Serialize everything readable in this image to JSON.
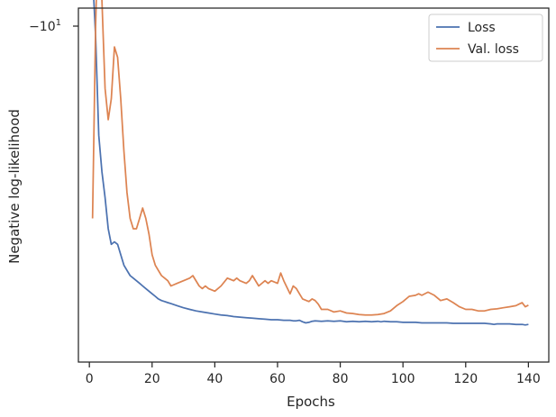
{
  "chart_data": {
    "type": "line",
    "xlabel": "Epochs",
    "ylabel": "Negative log-likelihood",
    "xlim": [
      -3.5,
      146.5
    ],
    "xticks": [
      0,
      20,
      40,
      60,
      80,
      100,
      120,
      140
    ],
    "y_top_tick_label": "−10",
    "y_top_tick_exponent": "1",
    "y_scale": "symlog (negated)",
    "grid": false,
    "legend_position": "top-right",
    "colors": {
      "Loss": "#4c72b0",
      "Val. loss": "#dd8452"
    },
    "series": [
      {
        "name": "Loss",
        "x": [
          1,
          2,
          3,
          4,
          5,
          6,
          7,
          8,
          9,
          10,
          11,
          12,
          13,
          14,
          15,
          16,
          17,
          18,
          19,
          20,
          21,
          22,
          23,
          24,
          25,
          26,
          28,
          30,
          32,
          34,
          36,
          38,
          40,
          42,
          44,
          46,
          48,
          50,
          52,
          54,
          56,
          58,
          60,
          62,
          64,
          65,
          66,
          67,
          68,
          69,
          70,
          71,
          72,
          74,
          76,
          78,
          80,
          82,
          84,
          86,
          88,
          90,
          92,
          93,
          94,
          96,
          98,
          100,
          102,
          104,
          106,
          108,
          110,
          112,
          114,
          116,
          118,
          120,
          122,
          124,
          126,
          128,
          129,
          130,
          132,
          134,
          136,
          138,
          139,
          140
        ],
        "y": [
          -11.0,
          -9.8,
          -7.9,
          -7.2,
          -6.7,
          -6.1,
          -5.8,
          -5.85,
          -5.8,
          -5.6,
          -5.4,
          -5.3,
          -5.2,
          -5.15,
          -5.1,
          -5.05,
          -5.0,
          -4.95,
          -4.9,
          -4.85,
          -4.8,
          -4.75,
          -4.72,
          -4.7,
          -4.68,
          -4.66,
          -4.62,
          -4.58,
          -4.55,
          -4.52,
          -4.5,
          -4.48,
          -4.46,
          -4.44,
          -4.43,
          -4.41,
          -4.4,
          -4.39,
          -4.38,
          -4.37,
          -4.36,
          -4.35,
          -4.35,
          -4.34,
          -4.34,
          -4.33,
          -4.33,
          -4.34,
          -4.31,
          -4.29,
          -4.3,
          -4.32,
          -4.33,
          -4.32,
          -4.33,
          -4.32,
          -4.33,
          -4.31,
          -4.32,
          -4.31,
          -4.32,
          -4.31,
          -4.32,
          -4.31,
          -4.32,
          -4.31,
          -4.31,
          -4.3,
          -4.3,
          -4.3,
          -4.29,
          -4.29,
          -4.29,
          -4.29,
          -4.29,
          -4.28,
          -4.28,
          -4.28,
          -4.28,
          -4.28,
          -4.28,
          -4.27,
          -4.26,
          -4.27,
          -4.27,
          -4.27,
          -4.26,
          -4.26,
          -4.25,
          -4.26
        ]
      },
      {
        "name": "Val. loss",
        "x": [
          1,
          2,
          3,
          4,
          5,
          6,
          7,
          8,
          9,
          10,
          11,
          12,
          13,
          14,
          15,
          16,
          17,
          18,
          19,
          20,
          21,
          22,
          23,
          24,
          25,
          26,
          28,
          30,
          32,
          33,
          35,
          36,
          37,
          38,
          40,
          42,
          44,
          46,
          47,
          48,
          50,
          51,
          52,
          54,
          56,
          57,
          58,
          60,
          61,
          62,
          64,
          65,
          66,
          67,
          68,
          70,
          71,
          72,
          73,
          74,
          76,
          78,
          80,
          82,
          84,
          86,
          88,
          90,
          92,
          94,
          96,
          98,
          100,
          102,
          104,
          105,
          106,
          108,
          110,
          112,
          114,
          116,
          118,
          120,
          122,
          124,
          126,
          128,
          130,
          132,
          134,
          136,
          137,
          138,
          139,
          140
        ],
        "y": [
          -6.3,
          -10.0,
          -12.3,
          -10.5,
          -8.8,
          -8.2,
          -8.6,
          -9.6,
          -9.4,
          -8.6,
          -7.6,
          -6.8,
          -6.3,
          -6.1,
          -6.1,
          -6.3,
          -6.5,
          -6.3,
          -6.0,
          -5.6,
          -5.4,
          -5.3,
          -5.2,
          -5.15,
          -5.1,
          -5.0,
          -5.05,
          -5.1,
          -5.15,
          -5.2,
          -5.0,
          -4.95,
          -5.0,
          -4.95,
          -4.9,
          -5.0,
          -5.15,
          -5.1,
          -5.15,
          -5.1,
          -5.05,
          -5.1,
          -5.2,
          -5.0,
          -5.1,
          -5.05,
          -5.1,
          -5.05,
          -5.25,
          -5.1,
          -4.85,
          -5.0,
          -4.95,
          -4.85,
          -4.75,
          -4.7,
          -4.75,
          -4.72,
          -4.65,
          -4.55,
          -4.55,
          -4.5,
          -4.52,
          -4.48,
          -4.47,
          -4.45,
          -4.44,
          -4.44,
          -4.45,
          -4.47,
          -4.52,
          -4.62,
          -4.7,
          -4.8,
          -4.82,
          -4.85,
          -4.82,
          -4.88,
          -4.82,
          -4.72,
          -4.75,
          -4.68,
          -4.6,
          -4.55,
          -4.55,
          -4.52,
          -4.52,
          -4.55,
          -4.56,
          -4.58,
          -4.6,
          -4.62,
          -4.65,
          -4.68,
          -4.6,
          -4.63
        ]
      }
    ]
  }
}
